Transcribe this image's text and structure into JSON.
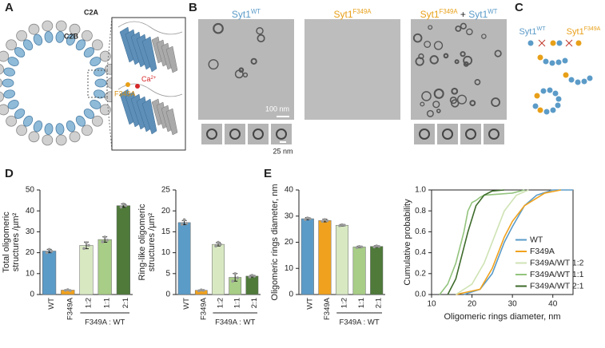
{
  "panel_labels": [
    "A",
    "B",
    "C",
    "D",
    "E"
  ],
  "panel_a": {
    "labels": [
      "C2A",
      "C2B"
    ],
    "mutation": "F349A",
    "ion": {
      "text": "Ca",
      "sup": "2+"
    }
  },
  "panel_b": {
    "titles": [
      [
        {
          "text": "Syt1",
          "sup": "WT",
          "color": "#5b9bc8"
        }
      ],
      [
        {
          "text": "Syt1",
          "sup": "F349A",
          "color": "#e8a019"
        }
      ],
      [
        {
          "text": "Syt1",
          "sup": "F349A",
          "color": "#e8a019"
        },
        {
          "text": " + ",
          "color": "#222222"
        },
        {
          "text": "Syt1",
          "sup": "WT",
          "color": "#5b9bc8"
        }
      ]
    ],
    "scale_large": "100 nm",
    "scale_small": "25 nm"
  },
  "panel_c": {
    "legend": [
      {
        "text": "Syt1",
        "sup": "WT",
        "color": "#5b9bc8"
      },
      {
        "text": "Syt1",
        "sup": "F349A",
        "color": "#e8a019"
      }
    ]
  },
  "chart_data": [
    {
      "type": "bar",
      "ylabel": [
        "Total oligomeric",
        "structures /µm²"
      ],
      "categories": [
        "WT",
        "F349A",
        "1:2",
        "1:1",
        "2:1"
      ],
      "group_label": "F349A : WT",
      "values": [
        20.8,
        2.1,
        23.5,
        26.3,
        42.5
      ],
      "errors": [
        0.8,
        0.2,
        1.6,
        1.3,
        0.8
      ],
      "points": [
        [
          20.0,
          21.6,
          20.7
        ],
        [
          2.0,
          2.3,
          1.9
        ],
        [
          22.0,
          24.8,
          23.5
        ],
        [
          25.2,
          27.5,
          26.0
        ],
        [
          41.8,
          43.3,
          42.5
        ]
      ],
      "colors": [
        "#5b9bc8",
        "#f0a21e",
        "#d8e9c2",
        "#a7cd86",
        "#4f7a3a"
      ],
      "ylim": [
        0,
        50
      ],
      "yticks": [
        0,
        10,
        20,
        30,
        40,
        50
      ]
    },
    {
      "type": "bar",
      "ylabel": [
        "Ring-like oligomeric",
        "structures /µm²"
      ],
      "categories": [
        "WT",
        "F349A",
        "1:2",
        "1:1",
        "2:1"
      ],
      "group_label": "F349A : WT",
      "values": [
        17.2,
        1.0,
        12.0,
        4.1,
        4.4
      ],
      "errors": [
        0.5,
        0.1,
        0.4,
        0.9,
        0.2
      ],
      "points": [
        [
          16.8,
          17.9,
          17.0
        ],
        [
          0.9,
          1.1,
          1.0
        ],
        [
          11.6,
          12.5,
          12.0
        ],
        [
          3.2,
          5.0,
          4.0
        ],
        [
          4.2,
          4.6,
          4.4
        ]
      ],
      "colors": [
        "#5b9bc8",
        "#f0a21e",
        "#d8e9c2",
        "#a7cd86",
        "#4f7a3a"
      ],
      "ylim": [
        0,
        25
      ],
      "yticks": [
        0,
        5,
        10,
        15,
        20,
        25
      ]
    },
    {
      "type": "bar",
      "ylabel": [
        "Oligomeric rings diameter, nm"
      ],
      "categories": [
        "WT",
        "F349A",
        "1:2",
        "1:1",
        "2:1"
      ],
      "group_label": "F349A : WT",
      "values": [
        29.0,
        28.3,
        26.5,
        18.2,
        18.4
      ],
      "errors": [
        0.4,
        0.5,
        0.3,
        0.3,
        0.3
      ],
      "points": [
        [
          28.7,
          29.3,
          29.0
        ],
        [
          28.0,
          28.7,
          28.2
        ],
        [
          26.3,
          26.7,
          26.5
        ],
        [
          18.0,
          18.4,
          18.2
        ],
        [
          18.2,
          18.6,
          18.4
        ]
      ],
      "colors": [
        "#5b9bc8",
        "#f0a21e",
        "#d8e9c2",
        "#a7cd86",
        "#4f7a3a"
      ],
      "ylim": [
        0,
        40
      ],
      "yticks": [
        0,
        10,
        20,
        30,
        40
      ]
    },
    {
      "type": "line",
      "xlabel": "Oligomeric rings diameter, nm",
      "ylabel": "Cumulative probability",
      "xlim": [
        10,
        45
      ],
      "xticks": [
        10,
        20,
        30,
        40
      ],
      "ylim": [
        0,
        1
      ],
      "yticks": [
        {
          "value": 0,
          "label": "0.0"
        },
        {
          "value": 0.2,
          "label": "0.2"
        },
        {
          "value": 0.4,
          "label": "0.4"
        },
        {
          "value": 0.6,
          "label": "0.6"
        },
        {
          "value": 0.8,
          "label": "0.8"
        },
        {
          "value": 1,
          "label": "1.0"
        }
      ],
      "legend": "lower right",
      "series": [
        {
          "name": "WT",
          "color": "#5b9bc8",
          "x": [
            18,
            22,
            25,
            28,
            30,
            33,
            36,
            40,
            45
          ],
          "values": [
            0,
            0.05,
            0.2,
            0.5,
            0.65,
            0.85,
            0.95,
            1,
            1
          ]
        },
        {
          "name": "F349A",
          "color": "#f0a21e",
          "x": [
            16,
            22,
            25,
            28,
            30,
            33,
            38,
            42
          ],
          "values": [
            0,
            0.05,
            0.25,
            0.55,
            0.7,
            0.85,
            0.97,
            1
          ]
        },
        {
          "name": "F349A/WT 1:2",
          "color": "#cfe3b4",
          "x": [
            16,
            20,
            23,
            26,
            28,
            31,
            34
          ],
          "values": [
            0,
            0.1,
            0.3,
            0.6,
            0.8,
            0.95,
            1
          ]
        },
        {
          "name": "F349A/WT 1:1",
          "color": "#93c47d",
          "x": [
            12,
            14,
            16,
            18,
            19,
            20,
            21,
            22,
            23,
            30,
            33
          ],
          "values": [
            0,
            0.1,
            0.3,
            0.6,
            0.8,
            0.88,
            0.9,
            0.93,
            0.95,
            0.97,
            1
          ]
        },
        {
          "name": "F349A/WT 2:1",
          "color": "#3e6b2b",
          "x": [
            14,
            16,
            18,
            19,
            21,
            23,
            25,
            28
          ],
          "values": [
            0,
            0.15,
            0.45,
            0.6,
            0.85,
            0.95,
            0.99,
            1
          ]
        }
      ]
    }
  ]
}
